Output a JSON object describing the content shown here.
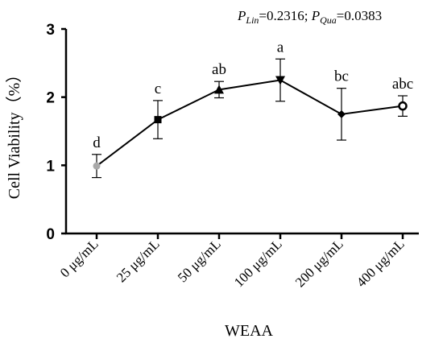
{
  "chart_data": {
    "type": "line",
    "title": "",
    "xlabel": "WEAA",
    "ylabel": "Cell Viability（%）",
    "ylim": [
      0,
      3
    ],
    "yticks": [
      "0",
      "1",
      "2",
      "3"
    ],
    "grid": false,
    "categories": [
      "0 μg/mL",
      "25 μg/mL",
      "50 μg/mL",
      "100 μg/mL",
      "200 μg/mL",
      "400 μg/mL"
    ],
    "series": [
      {
        "values": [
          0.99,
          1.67,
          2.11,
          2.25,
          1.75,
          1.87
        ],
        "errors": [
          0.17,
          0.28,
          0.12,
          0.31,
          0.38,
          0.15
        ],
        "markers": [
          "circle-gray",
          "square",
          "triangle-up",
          "triangle-down",
          "diamond",
          "circle-ring"
        ],
        "significance_labels": [
          "d",
          "c",
          "ab",
          "a",
          "bc",
          "abc"
        ],
        "color": "#000000"
      }
    ],
    "annotation": {
      "p_lin_symbol": "P",
      "p_lin_sub": "Lin",
      "p_lin_value": "=0.2316; ",
      "p_qua_symbol": "P",
      "p_qua_sub": "Qua",
      "p_qua_value": "=0.0383"
    }
  }
}
